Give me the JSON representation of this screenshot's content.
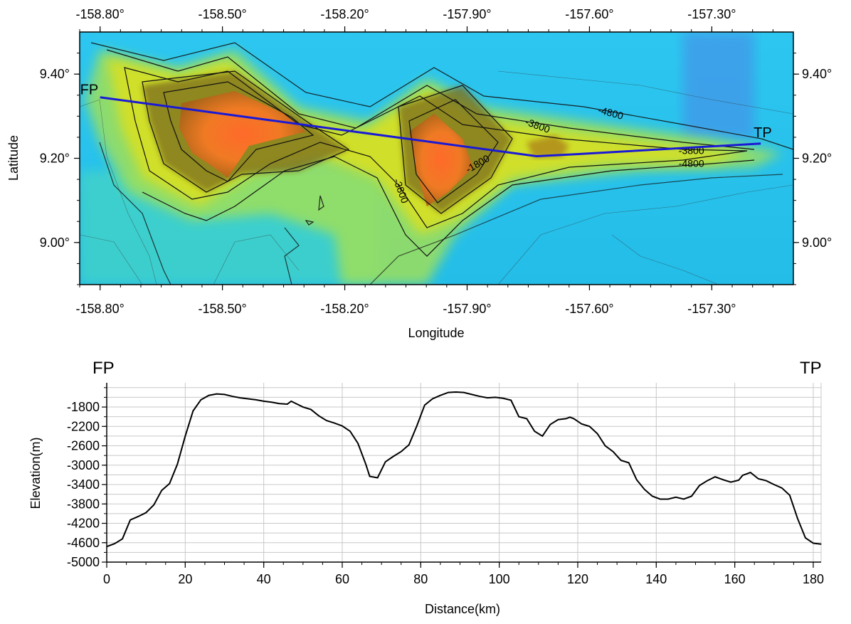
{
  "chart_data": [
    {
      "type": "contour-map",
      "xlabel": "Longitude",
      "ylabel": "Latitude",
      "xlim": [
        -158.85,
        -157.1
      ],
      "ylim": [
        8.9,
        9.5
      ],
      "x_ticks": [
        "-158.80°",
        "-158.50°",
        "-158.20°",
        "-157.90°",
        "-157.60°",
        "-157.30°"
      ],
      "x_tick_values": [
        -158.8,
        -158.5,
        -158.2,
        -157.9,
        -157.6,
        -157.3
      ],
      "y_ticks": [
        "9.40°",
        "9.20°",
        "9.00°"
      ],
      "y_tick_values": [
        9.4,
        9.2,
        9.0
      ],
      "contour_labels": [
        {
          "text": "-3800",
          "lon": -157.73,
          "lat": 9.27
        },
        {
          "text": "-4800",
          "lon": -157.55,
          "lat": 9.3
        },
        {
          "text": "-1800",
          "lon": -157.87,
          "lat": 9.18
        },
        {
          "text": "-3800",
          "lon": -158.07,
          "lat": 9.12
        },
        {
          "text": "-3800",
          "lon": -157.35,
          "lat": 9.21
        },
        {
          "text": "-4800",
          "lon": -157.35,
          "lat": 9.18
        }
      ],
      "profile_line": {
        "color": "#1a1ad6",
        "start_label": "FP",
        "end_label": "TP",
        "points": [
          [
            -158.8,
            9.345
          ],
          [
            -157.73,
            9.205
          ],
          [
            -157.63,
            9.21
          ],
          [
            -157.18,
            9.235
          ]
        ]
      },
      "colors": {
        "deep": "#28c4ee",
        "mid": "#c8e020",
        "shallow": "#ff6a2a"
      }
    },
    {
      "type": "line",
      "xlabel": "Distance(km)",
      "ylabel": "Elevation(m)",
      "start_label": "FP",
      "end_label": "TP",
      "xlim": [
        0,
        182
      ],
      "ylim": [
        -5000,
        -1300
      ],
      "x_ticks": [
        0,
        20,
        40,
        60,
        80,
        100,
        120,
        140,
        160,
        180
      ],
      "y_ticks": [
        -1800,
        -2200,
        -2600,
        -3000,
        -3400,
        -3800,
        -4200,
        -4600,
        -5000
      ],
      "grid": true,
      "series": [
        {
          "values": [
            [
              0,
              -4680
            ],
            [
              2,
              -4620
            ],
            [
              4,
              -4520
            ],
            [
              6,
              -4130
            ],
            [
              8,
              -4060
            ],
            [
              10,
              -3980
            ],
            [
              12,
              -3820
            ],
            [
              14,
              -3520
            ],
            [
              16,
              -3380
            ],
            [
              18,
              -2980
            ],
            [
              20,
              -2400
            ],
            [
              22,
              -1880
            ],
            [
              24,
              -1650
            ],
            [
              26,
              -1560
            ],
            [
              28,
              -1530
            ],
            [
              30,
              -1540
            ],
            [
              32,
              -1580
            ],
            [
              34,
              -1610
            ],
            [
              36,
              -1630
            ],
            [
              38,
              -1650
            ],
            [
              40,
              -1680
            ],
            [
              42,
              -1700
            ],
            [
              44,
              -1730
            ],
            [
              46,
              -1740
            ],
            [
              47,
              -1680
            ],
            [
              48,
              -1720
            ],
            [
              50,
              -1800
            ],
            [
              52,
              -1850
            ],
            [
              54,
              -1980
            ],
            [
              56,
              -2080
            ],
            [
              58,
              -2130
            ],
            [
              60,
              -2190
            ],
            [
              62,
              -2300
            ],
            [
              64,
              -2550
            ],
            [
              66,
              -2980
            ],
            [
              67,
              -3230
            ],
            [
              69,
              -3260
            ],
            [
              71,
              -2930
            ],
            [
              73,
              -2820
            ],
            [
              75,
              -2720
            ],
            [
              77,
              -2580
            ],
            [
              79,
              -2190
            ],
            [
              81,
              -1760
            ],
            [
              83,
              -1630
            ],
            [
              85,
              -1560
            ],
            [
              87,
              -1500
            ],
            [
              89,
              -1490
            ],
            [
              91,
              -1500
            ],
            [
              93,
              -1540
            ],
            [
              95,
              -1580
            ],
            [
              97,
              -1610
            ],
            [
              99,
              -1600
            ],
            [
              101,
              -1620
            ],
            [
              103,
              -1660
            ],
            [
              105,
              -2000
            ],
            [
              107,
              -2040
            ],
            [
              109,
              -2300
            ],
            [
              111,
              -2400
            ],
            [
              113,
              -2160
            ],
            [
              115,
              -2060
            ],
            [
              117,
              -2040
            ],
            [
              118,
              -2010
            ],
            [
              119,
              -2040
            ],
            [
              121,
              -2150
            ],
            [
              123,
              -2200
            ],
            [
              125,
              -2350
            ],
            [
              127,
              -2600
            ],
            [
              129,
              -2720
            ],
            [
              131,
              -2900
            ],
            [
              133,
              -2950
            ],
            [
              135,
              -3300
            ],
            [
              137,
              -3500
            ],
            [
              139,
              -3640
            ],
            [
              141,
              -3700
            ],
            [
              143,
              -3700
            ],
            [
              145,
              -3660
            ],
            [
              147,
              -3700
            ],
            [
              149,
              -3640
            ],
            [
              151,
              -3420
            ],
            [
              153,
              -3320
            ],
            [
              155,
              -3240
            ],
            [
              157,
              -3300
            ],
            [
              159,
              -3350
            ],
            [
              161,
              -3310
            ],
            [
              162,
              -3210
            ],
            [
              164,
              -3150
            ],
            [
              166,
              -3280
            ],
            [
              168,
              -3320
            ],
            [
              170,
              -3400
            ],
            [
              172,
              -3470
            ],
            [
              174,
              -3620
            ],
            [
              176,
              -4100
            ],
            [
              178,
              -4500
            ],
            [
              180,
              -4610
            ],
            [
              182,
              -4630
            ]
          ]
        }
      ]
    }
  ]
}
